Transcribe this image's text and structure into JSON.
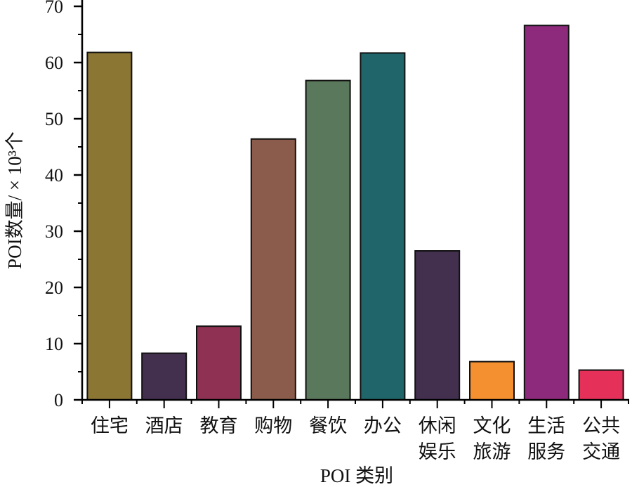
{
  "chart_data": {
    "type": "bar",
    "title": "",
    "xlabel": "POI 类别",
    "ylabel": "POI数量/ × 10³个",
    "ylim": [
      0,
      70
    ],
    "yticks": [
      0,
      10,
      20,
      30,
      40,
      50,
      60,
      70
    ],
    "grid": false,
    "legend": null,
    "categories": [
      "住宅",
      "酒店",
      "教育",
      "购物",
      "餐饮",
      "办公",
      "休闲娱乐",
      "文化旅游",
      "生活服务",
      "公共交通"
    ],
    "category_lines": [
      [
        "住宅"
      ],
      [
        "酒店"
      ],
      [
        "教育"
      ],
      [
        "购物"
      ],
      [
        "餐饮"
      ],
      [
        "办公"
      ],
      [
        "休闲",
        "娱乐"
      ],
      [
        "文化",
        "旅游"
      ],
      [
        "生活",
        "服务"
      ],
      [
        "公共",
        "交通"
      ]
    ],
    "values": [
      61.8,
      8.3,
      13.1,
      46.4,
      56.8,
      61.7,
      26.5,
      6.8,
      66.6,
      5.3
    ],
    "colors": [
      "#8c7634",
      "#43304f",
      "#8f3152",
      "#8b5c4b",
      "#5a785b",
      "#1f6569",
      "#43304f",
      "#f4902f",
      "#8e2a7c",
      "#e5305a"
    ]
  }
}
